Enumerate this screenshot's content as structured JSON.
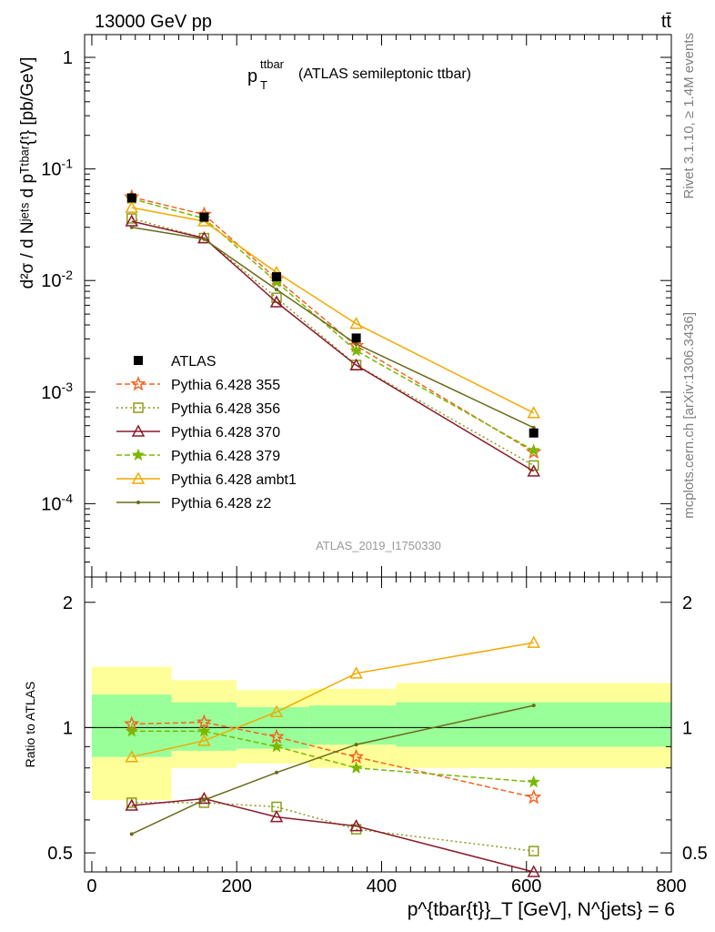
{
  "header": {
    "energy_label": "13000 GeV pp",
    "process_label": "tt̄"
  },
  "side_labels": {
    "rivet": "Rivet 3.1.10, ≥ 1.4M events",
    "mcplots": "mcplots.cern.ch [arXiv:1306.3436]"
  },
  "chart_data": {
    "type": "line",
    "title_main": "p",
    "title_sup": "ttbar",
    "title_sub": "T",
    "title_rest": "(ATLAS semileptonic ttbar)",
    "analysis_id": "ATLAS_2019_I1750330",
    "ylabel_top": "d²σ / d Nʲᵉᵗˢ d pᵀᵗᵇᵃʳ{ᵗ} [pb/GeV]",
    "ylabel_bottom": "Ratio to ATLAS",
    "xlabel": "p^{tbar{t}}_T [GeV], N^{jets} = 6",
    "xlim": [
      -10,
      800
    ],
    "ylim_top": [
      2.2e-05,
      1.6
    ],
    "yscale_top": "log",
    "ylim_bottom": [
      0.45,
      2.3
    ],
    "yscale_bottom": "log",
    "x_ticks": [
      0,
      200,
      400,
      600,
      800
    ],
    "top_ticks": [
      {
        "v": 1,
        "label": "1"
      },
      {
        "v": 0.1,
        "label": "10^{-1}"
      },
      {
        "v": 0.01,
        "label": "10^{-2}"
      },
      {
        "v": 0.001,
        "label": "10^{-3}"
      },
      {
        "v": 0.0001,
        "label": "10^{-4}"
      }
    ],
    "bottom_ticks": [
      {
        "v": 0.5,
        "label": "0.5"
      },
      {
        "v": 1,
        "label": "1"
      },
      {
        "v": 2,
        "label": "2"
      }
    ],
    "bins": [
      {
        "lo": 0,
        "hi": 110
      },
      {
        "lo": 110,
        "hi": 200
      },
      {
        "lo": 200,
        "hi": 300
      },
      {
        "lo": 300,
        "hi": 420
      },
      {
        "lo": 420,
        "hi": 800
      }
    ],
    "data_x": [
      55,
      155,
      255,
      365,
      610
    ],
    "data": {
      "name": "ATLAS",
      "values": [
        0.055,
        0.037,
        0.0108,
        0.00305,
        0.00043
      ],
      "band_inner_low": [
        0.85,
        0.88,
        0.89,
        0.91,
        0.9
      ],
      "band_inner_high": [
        1.2,
        1.15,
        1.12,
        1.13,
        1.15
      ],
      "band_outer_low": [
        0.67,
        0.8,
        0.82,
        0.8,
        0.8
      ],
      "band_outer_high": [
        1.4,
        1.3,
        1.23,
        1.24,
        1.28
      ]
    },
    "series": [
      {
        "name": "Pythia 6.428 355",
        "color": "#f26522",
        "dash": "6,3",
        "marker": "star-open",
        "values": [
          0.056,
          0.039,
          0.0103,
          0.0026,
          0.00029
        ],
        "ratio": [
          1.02,
          1.03,
          0.95,
          0.85,
          0.68
        ]
      },
      {
        "name": "Pythia 6.428 356",
        "color": "#8c9c1a",
        "dash": "2,3",
        "marker": "square-open",
        "values": [
          0.036,
          0.024,
          0.007,
          0.00175,
          0.00022
        ],
        "ratio": [
          0.66,
          0.66,
          0.645,
          0.57,
          0.505
        ]
      },
      {
        "name": "Pythia 6.428 370",
        "color": "#8b1a2b",
        "dash": "",
        "marker": "triangle-open",
        "values": [
          0.034,
          0.024,
          0.0064,
          0.00174,
          0.000195
        ],
        "ratio": [
          0.65,
          0.675,
          0.61,
          0.58,
          0.45
        ]
      },
      {
        "name": "Pythia 6.428 379",
        "color": "#7ab800",
        "dash": "6,3",
        "marker": "star-filled",
        "values": [
          0.054,
          0.036,
          0.0097,
          0.00235,
          0.0003
        ],
        "ratio": [
          0.98,
          0.98,
          0.9,
          0.8,
          0.74
        ]
      },
      {
        "name": "Pythia 6.428 ambt1",
        "color": "#f2a900",
        "dash": "",
        "marker": "triangle-open",
        "values": [
          0.045,
          0.034,
          0.0118,
          0.0041,
          0.00065
        ],
        "ratio": [
          0.85,
          0.93,
          1.09,
          1.35,
          1.6
        ]
      },
      {
        "name": "Pythia 6.428 z2",
        "color": "#6b6b1a",
        "dash": "",
        "marker": "dot",
        "values": [
          0.03,
          0.0235,
          0.0083,
          0.0027,
          0.00048
        ],
        "ratio": [
          0.555,
          0.67,
          0.78,
          0.91,
          1.13
        ]
      }
    ]
  }
}
